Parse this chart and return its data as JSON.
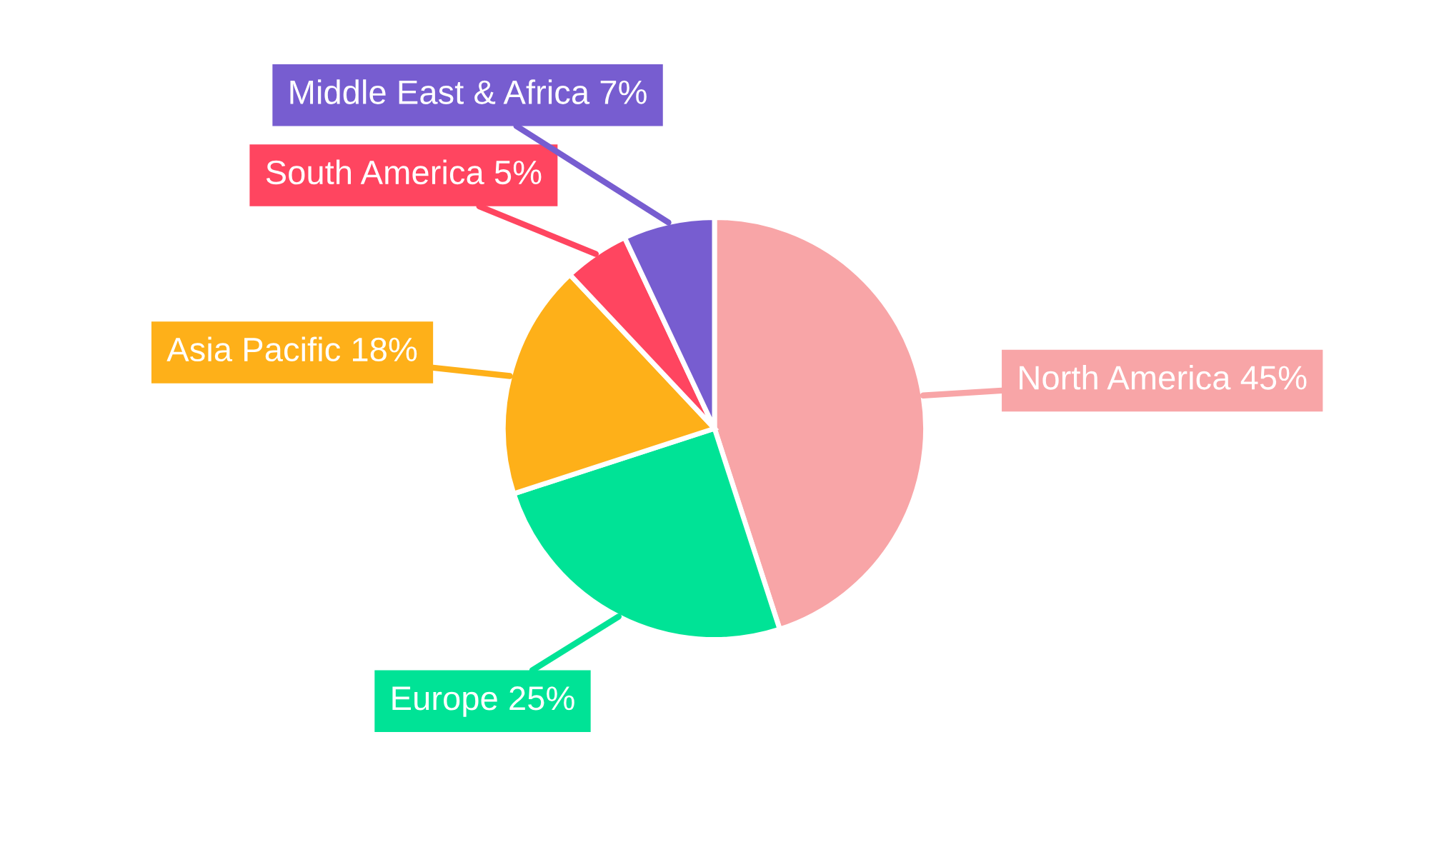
{
  "chart_data": {
    "type": "pie",
    "categories": [
      "North America",
      "Europe",
      "Asia Pacific",
      "South America",
      "Middle East & Africa"
    ],
    "values": [
      45,
      25,
      18,
      5,
      7
    ],
    "value_labels": [
      "45%",
      "25%",
      "18%",
      "5%",
      "7%"
    ],
    "colors": [
      "#f8a5a7",
      "#00e396",
      "#feb019",
      "#ff4560",
      "#775dd0"
    ],
    "legend": false
  }
}
